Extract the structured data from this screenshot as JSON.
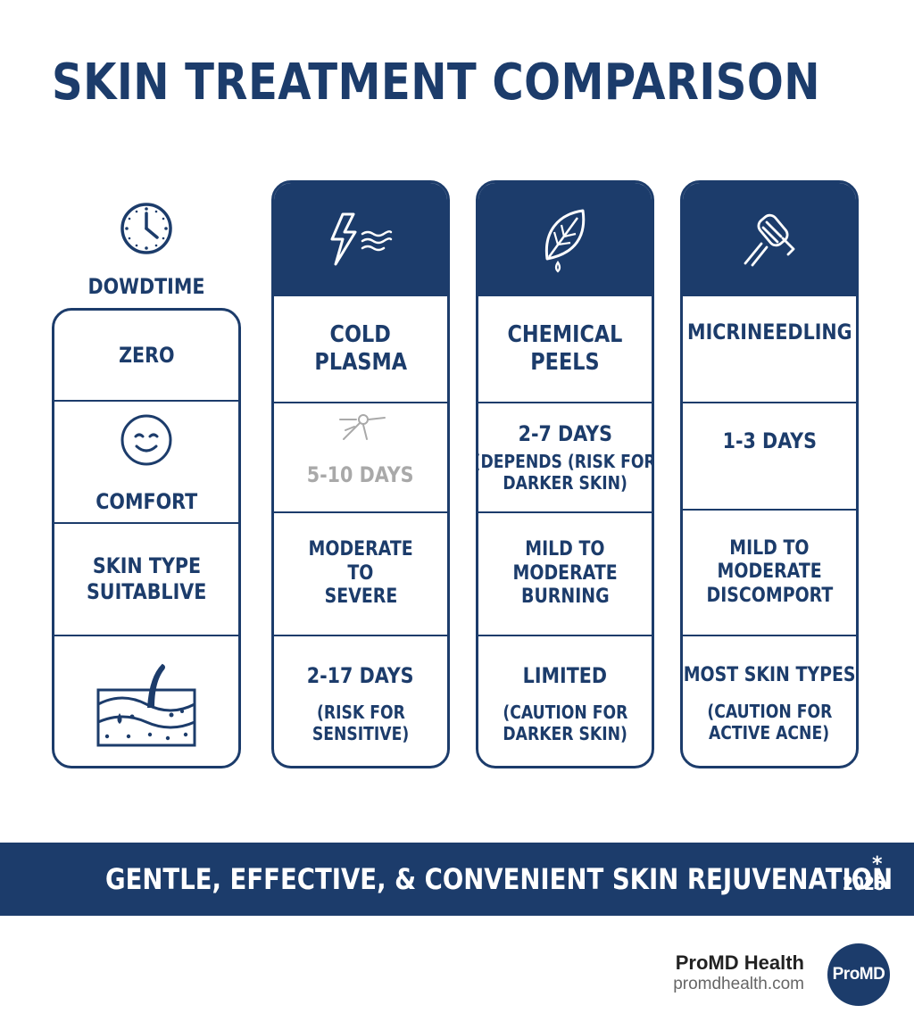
{
  "title": "SKIN TREATMENT COMPARISON",
  "labels": {
    "icon": "clock-icon",
    "header": "DOWDTIME",
    "rows": {
      "downtime": "ZERO",
      "comfort": "COMFORT",
      "comfort_icon": "smiling-face-icon",
      "skin_type": [
        "SKIN TYPE",
        "SUITABLIVE"
      ],
      "extra_icon": "skin-layers-icon"
    }
  },
  "treatments": [
    {
      "icon": "cold-plasma-bolt-icon",
      "name": [
        "COLD",
        "PLASMA"
      ],
      "downtime": [
        "5-10 DAYS"
      ],
      "downtime_icon": "sparkle-tool-icon",
      "comfort": [
        "MODERATE",
        "TO",
        "SEVERE"
      ],
      "skin_type": [
        "2-17 DAYS"
      ],
      "skin_type_note": [
        "(RISK FOR",
        "SENSITIVE)"
      ]
    },
    {
      "icon": "leaf-drop-icon",
      "name": [
        "CHEMICAL",
        "PEELS"
      ],
      "downtime": [
        "2-7 DAYS"
      ],
      "downtime_note": [
        "(DEPENDS (RISK FOR",
        "DARKER SKIN)"
      ],
      "comfort": [
        "MILD TO",
        "MODERATE",
        "BURNING"
      ],
      "skin_type": [
        "LIMITED"
      ],
      "skin_type_note": [
        "(CAUTION FOR",
        "DARKER SKIN)"
      ]
    },
    {
      "icon": "microneedling-roller-icon",
      "name": [
        "MICRINEEDLING"
      ],
      "downtime": [
        "1-3 DAYS"
      ],
      "comfort": [
        "MILD TO",
        "MODERATE",
        "DISCOMPORT"
      ],
      "skin_type": [
        "MOST SKIN TYPES"
      ],
      "skin_type_note": [
        "(CAUTION FOR",
        "ACTIVE ACNE)"
      ]
    }
  ],
  "banner": {
    "slogan": "GENTLE, EFFECTIVE, & CONVENIENT SKIN REJUVENATION",
    "year": "2025",
    "mark": "*"
  },
  "brand": {
    "name": "ProMD Health",
    "url": "promdhealth.com",
    "logo_text": "ProMD"
  },
  "colors": {
    "primary": "#1c3c6b",
    "muted_text": "#a9a9a9",
    "background": "#ffffff"
  }
}
